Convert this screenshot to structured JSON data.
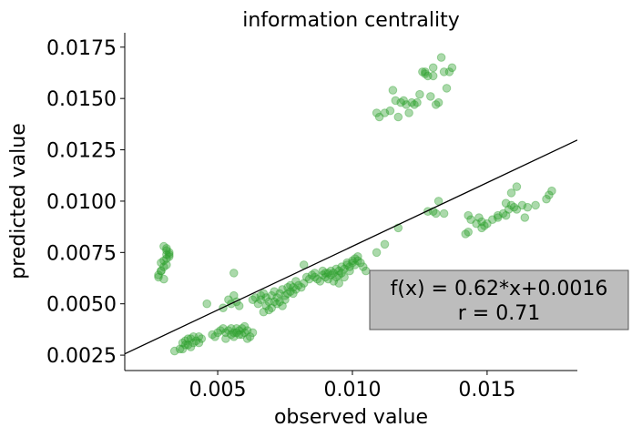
{
  "chart_data": {
    "type": "scatter",
    "title": "information centrality",
    "xlabel": "observed value",
    "ylabel": "predicted value",
    "xlim": [
      0.00155,
      0.01835
    ],
    "ylim": [
      0.00175,
      0.0182
    ],
    "xticks": [
      0.005,
      0.01,
      0.015
    ],
    "xtick_labels": [
      "0.005",
      "0.010",
      "0.015"
    ],
    "yticks": [
      0.0025,
      0.005,
      0.0075,
      0.01,
      0.0125,
      0.015,
      0.0175
    ],
    "ytick_labels": [
      "0.0025",
      "0.0050",
      "0.0075",
      "0.0100",
      "0.0125",
      "0.0150",
      "0.0175"
    ],
    "grid": false,
    "point_color": "#2ca02c",
    "point_alpha": 0.4,
    "fit_line": {
      "slope": 0.62,
      "intercept": 0.0016,
      "color": "#000000"
    },
    "annotation": {
      "lines": [
        "f(x) = 0.62*x+0.0016",
        "r = 0.71"
      ],
      "background": "#bdbdbd",
      "border": "#555555"
    },
    "points": [
      [
        0.0028,
        0.0064
      ],
      [
        0.0029,
        0.0066
      ],
      [
        0.003,
        0.0068
      ],
      [
        0.0029,
        0.007
      ],
      [
        0.003,
        0.0071
      ],
      [
        0.0031,
        0.0069
      ],
      [
        0.0031,
        0.0072
      ],
      [
        0.0032,
        0.0073
      ],
      [
        0.0031,
        0.0074
      ],
      [
        0.0032,
        0.0075
      ],
      [
        0.0031,
        0.0076
      ],
      [
        0.0032,
        0.0074
      ],
      [
        0.003,
        0.0078
      ],
      [
        0.0031,
        0.0077
      ],
      [
        0.0029,
        0.0066
      ],
      [
        0.0028,
        0.0063
      ],
      [
        0.003,
        0.0062
      ],
      [
        0.0034,
        0.0027
      ],
      [
        0.0036,
        0.0028
      ],
      [
        0.0037,
        0.0031
      ],
      [
        0.0038,
        0.0032
      ],
      [
        0.0039,
        0.003
      ],
      [
        0.004,
        0.0033
      ],
      [
        0.0041,
        0.0031
      ],
      [
        0.0042,
        0.0032
      ],
      [
        0.0043,
        0.0034
      ],
      [
        0.004,
        0.0029
      ],
      [
        0.0038,
        0.003
      ],
      [
        0.0044,
        0.0033
      ],
      [
        0.0039,
        0.0033
      ],
      [
        0.0041,
        0.0034
      ],
      [
        0.0043,
        0.0031
      ],
      [
        0.0037,
        0.0028
      ],
      [
        0.0048,
        0.0035
      ],
      [
        0.0049,
        0.0034
      ],
      [
        0.005,
        0.0036
      ],
      [
        0.0051,
        0.0037
      ],
      [
        0.0052,
        0.0038
      ],
      [
        0.0053,
        0.0036
      ],
      [
        0.0054,
        0.0037
      ],
      [
        0.0055,
        0.0038
      ],
      [
        0.0056,
        0.0036
      ],
      [
        0.0057,
        0.0038
      ],
      [
        0.0058,
        0.0037
      ],
      [
        0.0059,
        0.0038
      ],
      [
        0.006,
        0.0036
      ],
      [
        0.0061,
        0.0037
      ],
      [
        0.0055,
        0.0035
      ],
      [
        0.0056,
        0.0034
      ],
      [
        0.0057,
        0.0036
      ],
      [
        0.0058,
        0.0035
      ],
      [
        0.0062,
        0.0034
      ],
      [
        0.0063,
        0.0036
      ],
      [
        0.0053,
        0.0033
      ],
      [
        0.0059,
        0.0035
      ],
      [
        0.006,
        0.0039
      ],
      [
        0.0061,
        0.0033
      ],
      [
        0.0046,
        0.005
      ],
      [
        0.0052,
        0.0048
      ],
      [
        0.0054,
        0.0052
      ],
      [
        0.0055,
        0.005
      ],
      [
        0.0056,
        0.0054
      ],
      [
        0.0057,
        0.0051
      ],
      [
        0.0058,
        0.0049
      ],
      [
        0.0056,
        0.0065
      ],
      [
        0.0063,
        0.0052
      ],
      [
        0.0064,
        0.0053
      ],
      [
        0.0065,
        0.005
      ],
      [
        0.0066,
        0.0054
      ],
      [
        0.0067,
        0.0055
      ],
      [
        0.0068,
        0.0053
      ],
      [
        0.0069,
        0.0051
      ],
      [
        0.007,
        0.0054
      ],
      [
        0.0071,
        0.0056
      ],
      [
        0.0072,
        0.0053
      ],
      [
        0.0073,
        0.0055
      ],
      [
        0.0074,
        0.0057
      ],
      [
        0.0075,
        0.0054
      ],
      [
        0.0076,
        0.0058
      ],
      [
        0.0077,
        0.0056
      ],
      [
        0.0078,
        0.0058
      ],
      [
        0.0079,
        0.0057
      ],
      [
        0.008,
        0.0059
      ],
      [
        0.0081,
        0.0058
      ],
      [
        0.0068,
        0.0049
      ],
      [
        0.007,
        0.0048
      ],
      [
        0.0072,
        0.005
      ],
      [
        0.0074,
        0.0049
      ],
      [
        0.0069,
        0.0047
      ],
      [
        0.0067,
        0.0046
      ],
      [
        0.0071,
        0.0051
      ],
      [
        0.0075,
        0.0052
      ],
      [
        0.0066,
        0.0052
      ],
      [
        0.0073,
        0.0051
      ],
      [
        0.0076,
        0.0055
      ],
      [
        0.0078,
        0.0055
      ],
      [
        0.0082,
        0.006
      ],
      [
        0.0077,
        0.0059
      ],
      [
        0.0079,
        0.0061
      ],
      [
        0.0083,
        0.0063
      ],
      [
        0.0084,
        0.0062
      ],
      [
        0.0085,
        0.0064
      ],
      [
        0.0086,
        0.0063
      ],
      [
        0.0087,
        0.0062
      ],
      [
        0.0088,
        0.0061
      ],
      [
        0.0089,
        0.0064
      ],
      [
        0.009,
        0.0063
      ],
      [
        0.0091,
        0.0065
      ],
      [
        0.0092,
        0.0066
      ],
      [
        0.0093,
        0.0065
      ],
      [
        0.0094,
        0.0067
      ],
      [
        0.0095,
        0.0066
      ],
      [
        0.0096,
        0.0068
      ],
      [
        0.0097,
        0.0067
      ],
      [
        0.0098,
        0.0069
      ],
      [
        0.0099,
        0.0068
      ],
      [
        0.01,
        0.007
      ],
      [
        0.0101,
        0.0069
      ],
      [
        0.0102,
        0.0071
      ],
      [
        0.0103,
        0.007
      ],
      [
        0.0104,
        0.0068
      ],
      [
        0.0105,
        0.0066
      ],
      [
        0.0091,
        0.0062
      ],
      [
        0.0093,
        0.0061
      ],
      [
        0.0095,
        0.0064
      ],
      [
        0.0097,
        0.0063
      ],
      [
        0.0099,
        0.0066
      ],
      [
        0.0101,
        0.0072
      ],
      [
        0.0102,
        0.0073
      ],
      [
        0.01,
        0.0071
      ],
      [
        0.0098,
        0.007
      ],
      [
        0.0096,
        0.0065
      ],
      [
        0.0094,
        0.0063
      ],
      [
        0.0092,
        0.0064
      ],
      [
        0.009,
        0.0065
      ],
      [
        0.0089,
        0.0066
      ],
      [
        0.0086,
        0.0065
      ],
      [
        0.0082,
        0.0069
      ],
      [
        0.0095,
        0.006
      ],
      [
        0.0109,
        0.0075
      ],
      [
        0.0112,
        0.0079
      ],
      [
        0.0117,
        0.0087
      ],
      [
        0.013,
        0.0095
      ],
      [
        0.0132,
        0.01
      ],
      [
        0.0131,
        0.0094
      ],
      [
        0.0134,
        0.0094
      ],
      [
        0.0128,
        0.0095
      ],
      [
        0.0143,
        0.0093
      ],
      [
        0.0144,
        0.0091
      ],
      [
        0.0146,
        0.0089
      ],
      [
        0.0147,
        0.0092
      ],
      [
        0.0148,
        0.009
      ],
      [
        0.0149,
        0.0088
      ],
      [
        0.015,
        0.0089
      ],
      [
        0.0143,
        0.0085
      ],
      [
        0.0148,
        0.0087
      ],
      [
        0.0152,
        0.0091
      ],
      [
        0.0154,
        0.0093
      ],
      [
        0.0156,
        0.0094
      ],
      [
        0.0157,
        0.0093
      ],
      [
        0.0158,
        0.0096
      ],
      [
        0.0159,
        0.0098
      ],
      [
        0.016,
        0.0097
      ],
      [
        0.0161,
        0.0096
      ],
      [
        0.0163,
        0.0098
      ],
      [
        0.0164,
        0.0092
      ],
      [
        0.0165,
        0.0097
      ],
      [
        0.0168,
        0.0098
      ],
      [
        0.0172,
        0.0101
      ],
      [
        0.0173,
        0.0103
      ],
      [
        0.0174,
        0.0105
      ],
      [
        0.0157,
        0.0099
      ],
      [
        0.0159,
        0.0104
      ],
      [
        0.0161,
        0.0107
      ],
      [
        0.0154,
        0.0092
      ],
      [
        0.0142,
        0.0084
      ],
      [
        0.0109,
        0.0143
      ],
      [
        0.011,
        0.0141
      ],
      [
        0.0112,
        0.0143
      ],
      [
        0.0114,
        0.0144
      ],
      [
        0.0115,
        0.0154
      ],
      [
        0.0116,
        0.0149
      ],
      [
        0.0117,
        0.0141
      ],
      [
        0.0118,
        0.0148
      ],
      [
        0.0119,
        0.0149
      ],
      [
        0.012,
        0.0147
      ],
      [
        0.0121,
        0.0143
      ],
      [
        0.0122,
        0.0148
      ],
      [
        0.0123,
        0.0147
      ],
      [
        0.0124,
        0.0148
      ],
      [
        0.0125,
        0.0152
      ],
      [
        0.0126,
        0.0163
      ],
      [
        0.0127,
        0.0162
      ],
      [
        0.0128,
        0.0161
      ],
      [
        0.0129,
        0.0151
      ],
      [
        0.013,
        0.0161
      ],
      [
        0.0131,
        0.0147
      ],
      [
        0.0132,
        0.0148
      ],
      [
        0.0133,
        0.017
      ],
      [
        0.0134,
        0.0163
      ],
      [
        0.0135,
        0.0155
      ],
      [
        0.0136,
        0.0163
      ],
      [
        0.0137,
        0.0165
      ],
      [
        0.013,
        0.0165
      ],
      [
        0.0127,
        0.0163
      ]
    ]
  }
}
